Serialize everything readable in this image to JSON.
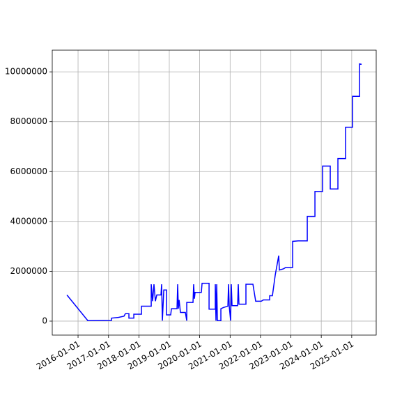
{
  "chart_data": {
    "type": "line",
    "x": [
      "2015-08-20",
      "2016-04-27",
      "2017-02-06",
      "2017-02-06",
      "2017-04-30",
      "2017-07-06",
      "2017-07-23",
      "2017-09-03",
      "2017-09-03",
      "2017-11-01",
      "2017-11-01",
      "2018-02-01",
      "2018-02-01",
      "2018-05-29",
      "2018-05-29",
      "2018-06-15",
      "2018-07-01",
      "2018-07-18",
      "2018-08-04",
      "2018-09-23",
      "2018-10-01",
      "2018-10-10",
      "2018-10-27",
      "2018-11-29",
      "2018-11-29",
      "2019-01-18",
      "2019-01-27",
      "2019-04-04",
      "2019-04-12",
      "2019-04-20",
      "2019-04-29",
      "2019-05-15",
      "2019-07-13",
      "2019-07-30",
      "2019-07-30",
      "2019-10-13",
      "2019-10-21",
      "2019-10-30",
      "2019-11-07",
      "2020-01-21",
      "2020-01-30",
      "2020-04-23",
      "2020-04-23",
      "2020-07-07",
      "2020-07-07",
      "2020-07-15",
      "2020-07-24",
      "2020-08-01",
      "2020-09-12",
      "2020-09-12",
      "2020-10-15",
      "2020-12-05",
      "2020-12-13",
      "2020-12-21",
      "2021-01-07",
      "2021-01-15",
      "2021-01-24",
      "2021-04-01",
      "2021-04-09",
      "2021-04-17",
      "2021-07-10",
      "2021-07-10",
      "2021-10-02",
      "2021-11-04",
      "2022-01-10",
      "2022-02-04",
      "2022-04-21",
      "2022-04-21",
      "2022-05-24",
      "2022-06-27",
      "2022-08-08",
      "2022-08-16",
      "2022-10-05",
      "2022-10-30",
      "2023-01-22",
      "2023-01-22",
      "2023-03-30",
      "2023-07-17",
      "2023-07-17",
      "2023-10-17",
      "2023-10-17",
      "2024-01-17",
      "2024-01-17",
      "2024-04-18",
      "2024-04-18",
      "2024-07-19",
      "2024-07-19",
      "2024-10-19",
      "2024-10-19",
      "2025-01-11",
      "2025-01-11",
      "2025-04-05",
      "2025-04-05",
      "2025-04-30"
    ],
    "series": [
      {
        "color": "#0000ff",
        "values": [
          1050000,
          20000,
          30000,
          120000,
          150000,
          200000,
          300000,
          300000,
          120000,
          120000,
          280000,
          280000,
          600000,
          600000,
          1480000,
          800000,
          1480000,
          800000,
          1050000,
          1050000,
          1480000,
          20000,
          1250000,
          1250000,
          250000,
          250000,
          500000,
          500000,
          1480000,
          500000,
          850000,
          350000,
          350000,
          20000,
          750000,
          750000,
          1480000,
          900000,
          1150000,
          1150000,
          1520000,
          1520000,
          480000,
          480000,
          1480000,
          20000,
          1480000,
          20000,
          20000,
          500000,
          550000,
          600000,
          1480000,
          600000,
          20000,
          1480000,
          620000,
          620000,
          1480000,
          680000,
          680000,
          1480000,
          1480000,
          800000,
          800000,
          850000,
          850000,
          1020000,
          1020000,
          1850000,
          2630000,
          2050000,
          2100000,
          2150000,
          2150000,
          3200000,
          3220000,
          3220000,
          4200000,
          4200000,
          5200000,
          5200000,
          6220000,
          6220000,
          5300000,
          5300000,
          6520000,
          6520000,
          7780000,
          7780000,
          9020000,
          9020000,
          10320000,
          10300000
        ]
      }
    ],
    "xlim": [
      "2015-02-25",
      "2025-10-22"
    ],
    "xticks": [
      "2016-01-01",
      "2017-01-01",
      "2018-01-01",
      "2019-01-01",
      "2020-01-01",
      "2021-01-01",
      "2022-01-01",
      "2023-01-01",
      "2024-01-01",
      "2025-01-01"
    ],
    "ylim": [
      -560000,
      10870000
    ],
    "yticks": [
      0,
      2000000,
      4000000,
      6000000,
      8000000,
      10000000
    ],
    "grid": true
  }
}
